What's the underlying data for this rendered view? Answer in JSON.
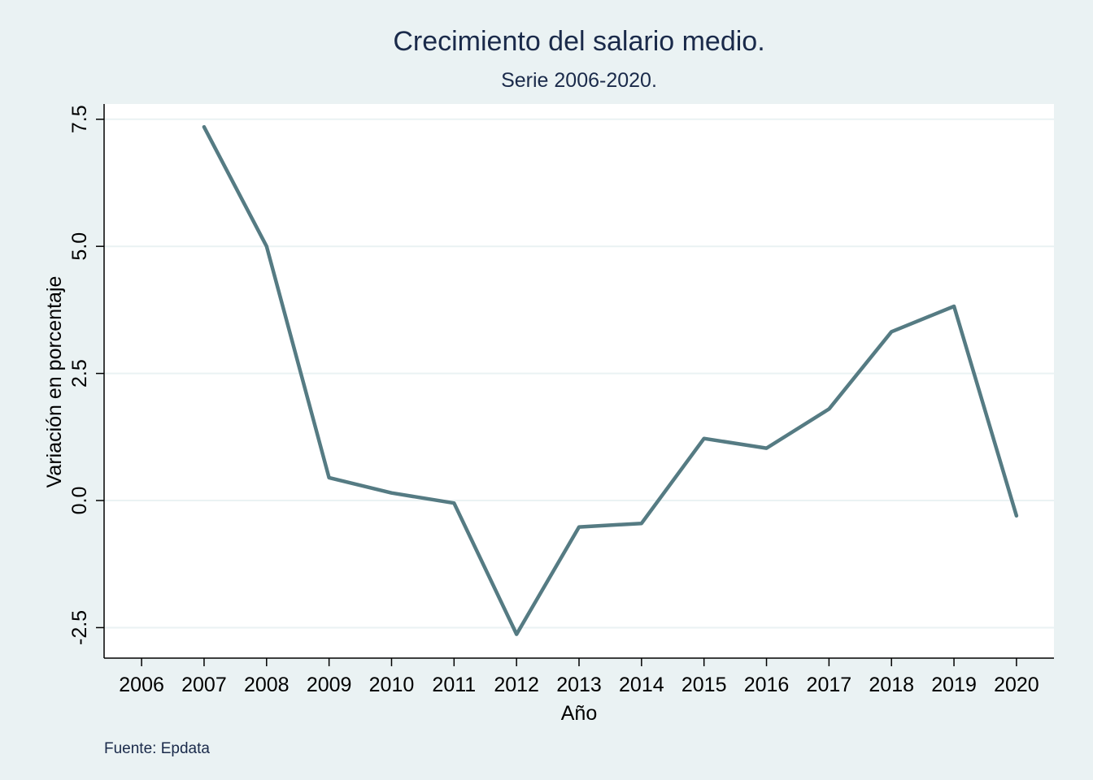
{
  "chart_data": {
    "type": "line",
    "title": "Crecimiento del salario medio.",
    "subtitle": "Serie 2006-2020.",
    "xlabel": "Año",
    "ylabel": "Variación en porcentaje",
    "note": "Fuente: Epdata",
    "x_ticks": [
      "2006",
      "2007",
      "2008",
      "2009",
      "2010",
      "2011",
      "2012",
      "2013",
      "2014",
      "2015",
      "2016",
      "2017",
      "2018",
      "2019",
      "2020"
    ],
    "y_ticks": [
      "-2.5",
      "0.0",
      "2.5",
      "5.0",
      "7.5"
    ],
    "xlim": [
      2005.4,
      2020.6
    ],
    "ylim": [
      -3.1,
      7.8
    ],
    "grid": true,
    "series": [
      {
        "x": [
          2007,
          2008,
          2009,
          2010,
          2011,
          2012,
          2013,
          2014,
          2015,
          2016,
          2017,
          2018,
          2019,
          2020
        ],
        "values": [
          7.35,
          5.0,
          0.45,
          0.15,
          -0.05,
          -2.63,
          -0.52,
          -0.45,
          1.22,
          1.03,
          1.8,
          3.32,
          3.82,
          -0.3
        ],
        "color": "#557b83"
      }
    ],
    "colors": {
      "background": "#eaf2f3",
      "plot_background": "#ffffff",
      "grid": "#eaf2f3",
      "line": "#557b83"
    }
  }
}
